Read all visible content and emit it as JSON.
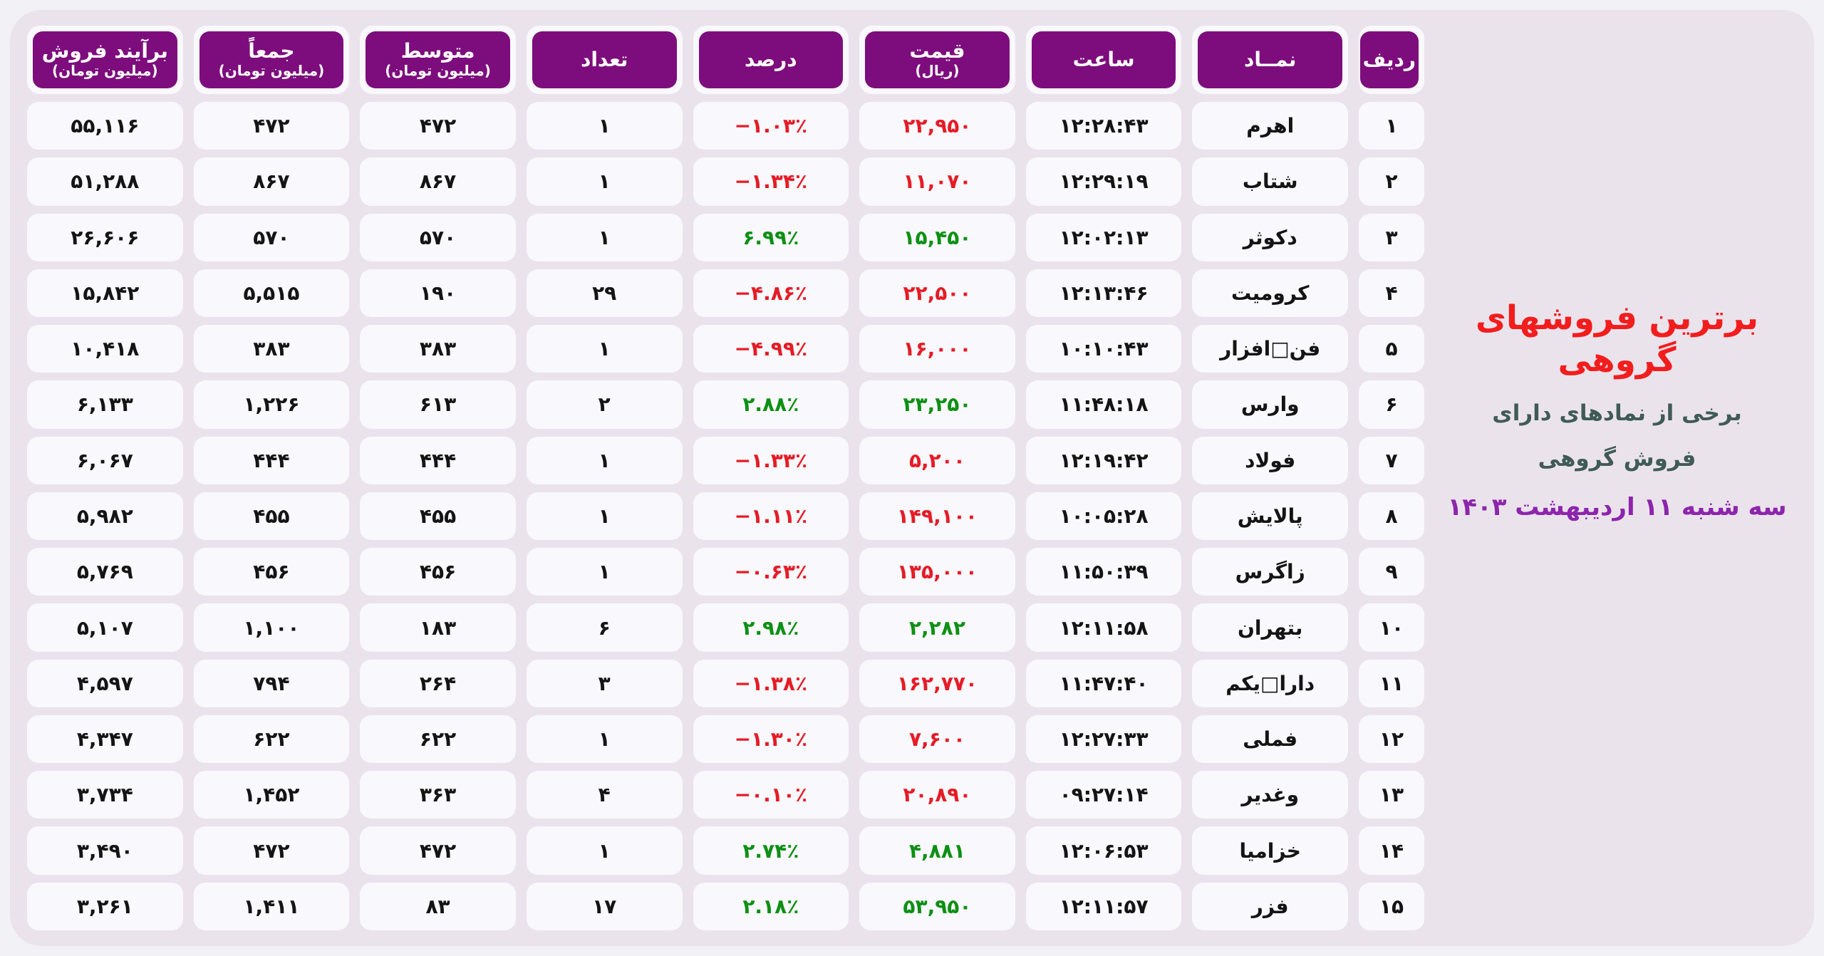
{
  "title_block": {
    "title": "برترین فروشهای گروهی",
    "subtitle_line1": "برخی از نمادهای دارای",
    "subtitle_line2": "فروش گروهی",
    "date": "سه شنبه ۱۱ اردیبهشت ۱۴۰۳"
  },
  "colors": {
    "header-purple": "#7d0d7d",
    "neg-red": "#e51c26",
    "pos-green": "#0d9014",
    "title-red": "#f21d1d",
    "subtitle-teal": "#3f5b56",
    "date-purple": "#8c25ac",
    "panel-bg": "#ebe3ec",
    "outer-bg": "#f2f1f5",
    "cell-bg": "#f9f8fc"
  },
  "chart_data": {
    "type": "table",
    "title": "برترین فروشهای گروهی",
    "columns": [
      {
        "key": "rank",
        "label": "ردیف",
        "sub": ""
      },
      {
        "key": "symbol",
        "label": "نمــاد",
        "sub": ""
      },
      {
        "key": "time",
        "label": "ساعت",
        "sub": ""
      },
      {
        "key": "price",
        "label": "قیمت",
        "sub": "(ریال)"
      },
      {
        "key": "percent",
        "label": "درصد",
        "sub": ""
      },
      {
        "key": "count",
        "label": "تعداد",
        "sub": ""
      },
      {
        "key": "avg",
        "label": "متوسط",
        "sub": "(میلیون تومان)"
      },
      {
        "key": "total",
        "label": "جمعاً",
        "sub": "(میلیون تومان)"
      },
      {
        "key": "net",
        "label": "برآیند فروش",
        "sub": "(میلیون تومان)"
      }
    ],
    "rows": [
      {
        "rank": "۱",
        "symbol": "اهرم",
        "time": "۱۲:۲۸:۴۳",
        "price": "۲۲,۹۵۰",
        "percent": "−۱.۰۳٪",
        "trend": "neg",
        "count": "۱",
        "avg": "۴۷۲",
        "total": "۴۷۲",
        "net": "۵۵,۱۱۶"
      },
      {
        "rank": "۲",
        "symbol": "شتاب",
        "time": "۱۲:۲۹:۱۹",
        "price": "۱۱,۰۷۰",
        "percent": "−۱.۳۴٪",
        "trend": "neg",
        "count": "۱",
        "avg": "۸۶۷",
        "total": "۸۶۷",
        "net": "۵۱,۲۸۸"
      },
      {
        "rank": "۳",
        "symbol": "دکوثر",
        "time": "۱۲:۰۲:۱۳",
        "price": "۱۵,۴۵۰",
        "percent": "۶.۹۹٪",
        "trend": "pos",
        "count": "۱",
        "avg": "۵۷۰",
        "total": "۵۷۰",
        "net": "۲۶,۶۰۶"
      },
      {
        "rank": "۴",
        "symbol": "کرومیت",
        "time": "۱۲:۱۳:۴۶",
        "price": "۲۲,۵۰۰",
        "percent": "−۴.۸۶٪",
        "trend": "neg",
        "count": "۲۹",
        "avg": "۱۹۰",
        "total": "۵,۵۱۵",
        "net": "۱۵,۸۴۲"
      },
      {
        "rank": "۵",
        "symbol": "فن□افزار",
        "time": "۱۰:۱۰:۴۳",
        "price": "۱۶,۰۰۰",
        "percent": "−۴.۹۹٪",
        "trend": "neg",
        "count": "۱",
        "avg": "۳۸۳",
        "total": "۳۸۳",
        "net": "۱۰,۴۱۸"
      },
      {
        "rank": "۶",
        "symbol": "وارس",
        "time": "۱۱:۴۸:۱۸",
        "price": "۲۳,۲۵۰",
        "percent": "۲.۸۸٪",
        "trend": "pos",
        "count": "۲",
        "avg": "۶۱۳",
        "total": "۱,۲۲۶",
        "net": "۶,۱۳۳"
      },
      {
        "rank": "۷",
        "symbol": "فولاد",
        "time": "۱۲:۱۹:۴۲",
        "price": "۵,۲۰۰",
        "percent": "−۱.۳۳٪",
        "trend": "neg",
        "count": "۱",
        "avg": "۴۴۴",
        "total": "۴۴۴",
        "net": "۶,۰۶۷"
      },
      {
        "rank": "۸",
        "symbol": "پالایش",
        "time": "۱۰:۰۵:۲۸",
        "price": "۱۴۹,۱۰۰",
        "percent": "−۱.۱۱٪",
        "trend": "neg",
        "count": "۱",
        "avg": "۴۵۵",
        "total": "۴۵۵",
        "net": "۵,۹۸۲"
      },
      {
        "rank": "۹",
        "symbol": "زاگرس",
        "time": "۱۱:۵۰:۳۹",
        "price": "۱۳۵,۰۰۰",
        "percent": "−۰.۶۳٪",
        "trend": "neg",
        "count": "۱",
        "avg": "۴۵۶",
        "total": "۴۵۶",
        "net": "۵,۷۶۹"
      },
      {
        "rank": "۱۰",
        "symbol": "بتهران",
        "time": "۱۲:۱۱:۵۸",
        "price": "۲,۲۸۲",
        "percent": "۲.۹۸٪",
        "trend": "pos",
        "count": "۶",
        "avg": "۱۸۳",
        "total": "۱,۱۰۰",
        "net": "۵,۱۰۷"
      },
      {
        "rank": "۱۱",
        "symbol": "دارا□یکم",
        "time": "۱۱:۴۷:۴۰",
        "price": "۱۶۲,۷۷۰",
        "percent": "−۱.۳۸٪",
        "trend": "neg",
        "count": "۳",
        "avg": "۲۶۴",
        "total": "۷۹۴",
        "net": "۴,۵۹۷"
      },
      {
        "rank": "۱۲",
        "symbol": "فملی",
        "time": "۱۲:۲۷:۳۳",
        "price": "۷,۶۰۰",
        "percent": "−۱.۳۰٪",
        "trend": "neg",
        "count": "۱",
        "avg": "۶۲۲",
        "total": "۶۲۲",
        "net": "۴,۳۴۷"
      },
      {
        "rank": "۱۳",
        "symbol": "وغدیر",
        "time": "۰۹:۲۷:۱۴",
        "price": "۲۰,۸۹۰",
        "percent": "−۰.۱۰٪",
        "trend": "neg",
        "count": "۴",
        "avg": "۳۶۳",
        "total": "۱,۴۵۲",
        "net": "۳,۷۳۴"
      },
      {
        "rank": "۱۴",
        "symbol": "خزامیا",
        "time": "۱۲:۰۶:۵۳",
        "price": "۴,۸۸۱",
        "percent": "۲.۷۴٪",
        "trend": "pos",
        "count": "۱",
        "avg": "۴۷۲",
        "total": "۴۷۲",
        "net": "۳,۴۹۰"
      },
      {
        "rank": "۱۵",
        "symbol": "فزر",
        "time": "۱۲:۱۱:۵۷",
        "price": "۵۳,۹۵۰",
        "percent": "۲.۱۸٪",
        "trend": "pos",
        "count": "۱۷",
        "avg": "۸۳",
        "total": "۱,۴۱۱",
        "net": "۳,۲۶۱"
      }
    ]
  }
}
